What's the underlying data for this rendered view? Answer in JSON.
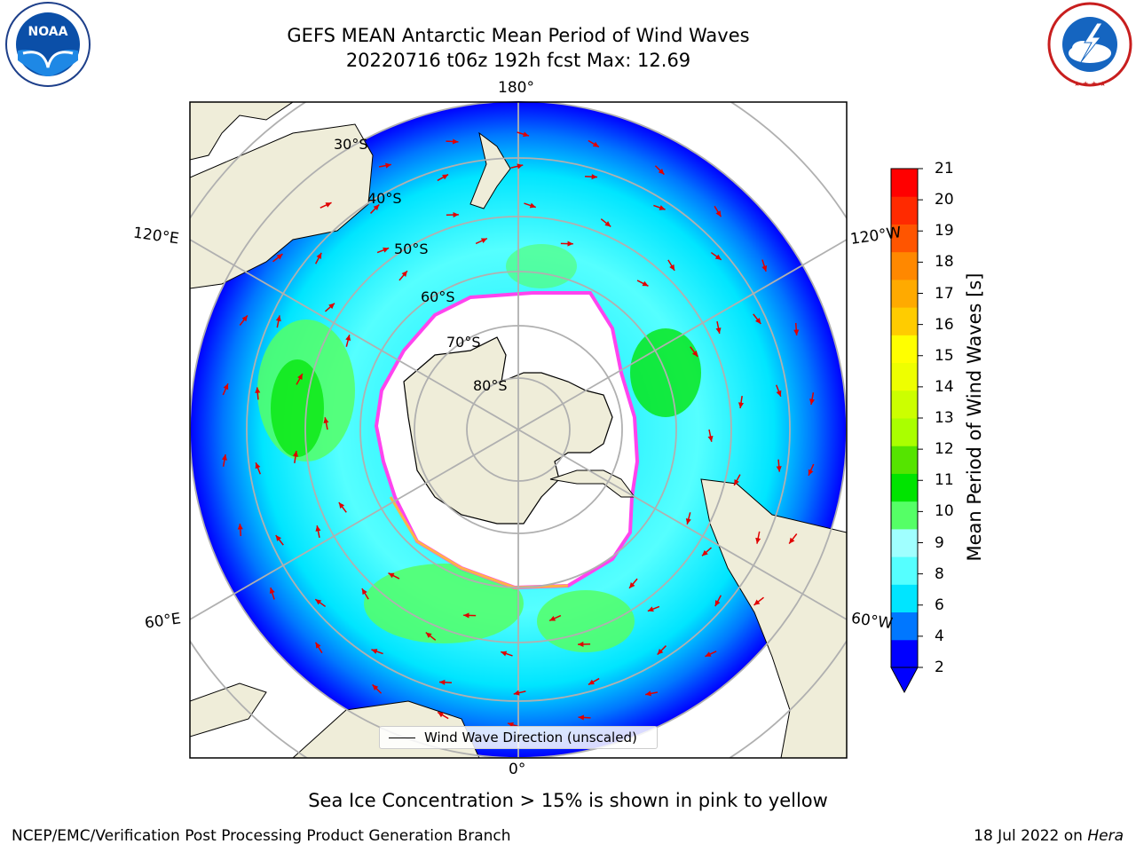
{
  "header": {
    "title_line1": "GEFS MEAN Antarctic Mean Period of Wind Waves",
    "title_line2": "20220716 t06z 192h fcst   Max: 12.69"
  },
  "logos": {
    "left": {
      "name": "noaa-logo",
      "text": "NOAA",
      "ring_text": "NATIONAL OCEANIC AND ATMOSPHERIC ADMINISTRATION · U.S. DEPARTMENT OF COMMERCE"
    },
    "right": {
      "name": "nws-logo",
      "ring_text": "NATIONAL WEATHER SERVICE"
    }
  },
  "map": {
    "projection": "south-polar-stereographic",
    "longitude_labels": {
      "top": "180°",
      "bottom": "0°",
      "upper_left": "120°E",
      "upper_right": "120°W",
      "lower_left": "60°E",
      "lower_right": "60°W"
    },
    "latitude_labels": [
      "30°S",
      "40°S",
      "50°S",
      "60°S",
      "70°S",
      "80°S"
    ],
    "legend_text": "Wind Wave Direction (unscaled)",
    "arrow_color": "#e00000",
    "land_color": "#efedd9",
    "ocean_no_data_color": "#ffffff",
    "sea_ice_edge_colors": [
      "#ff44ee",
      "#ffb347"
    ]
  },
  "colorbar": {
    "label": "Mean Period of Wind Waves [s]",
    "ticks": [
      "21",
      "20",
      "19",
      "18",
      "17",
      "16",
      "15",
      "14",
      "13",
      "12",
      "11",
      "10",
      "9",
      "8",
      "6",
      "4",
      "2"
    ],
    "colors": [
      "#0000ff",
      "#0077ff",
      "#00e5ff",
      "#55ffff",
      "#a0ffff",
      "#55ff66",
      "#00e400",
      "#55e400",
      "#aaff00",
      "#ccff00",
      "#eeff00",
      "#ffff00",
      "#ffcc00",
      "#ffaa00",
      "#ff8800",
      "#ff5500",
      "#ff2a00",
      "#ff0000"
    ],
    "extend": "min"
  },
  "footer": {
    "note": "Sea Ice Concentration > 15% is shown in pink to yellow",
    "credit_left": "NCEP/EMC/Verification Post Processing Product Generation Branch",
    "credit_right_date": "18 Jul 2022 on",
    "credit_right_system": "Hera"
  }
}
